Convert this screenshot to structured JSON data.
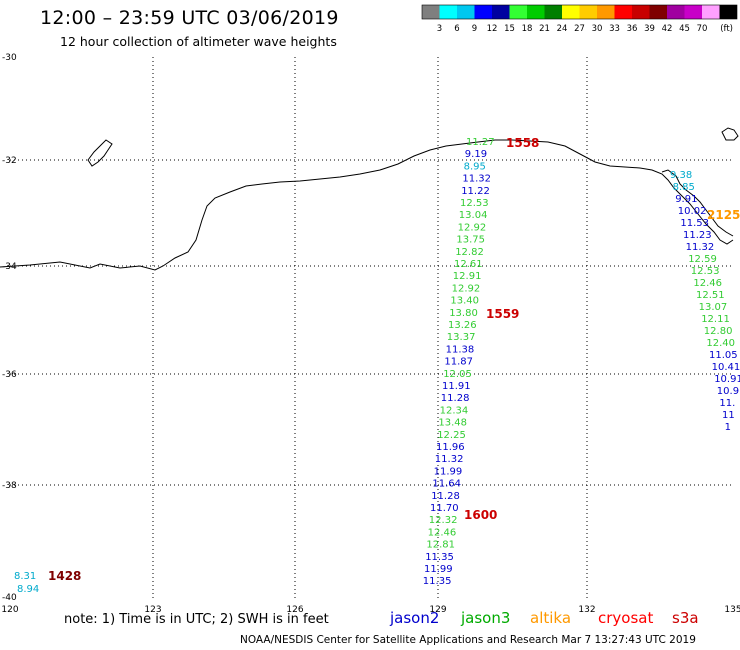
{
  "header": {
    "title": "12:00 – 23:59 UTC 03/06/2019",
    "subtitle": "12 hour collection of altimeter wave heights"
  },
  "colorbar": {
    "unit": "(ft)",
    "colors": [
      "#7f7f7f",
      "#00ffff",
      "#00c8f0",
      "#0000ff",
      "#0000a0",
      "#33ff33",
      "#00cc00",
      "#007f00",
      "#ffff00",
      "#ffcc00",
      "#ff9900",
      "#ff0000",
      "#c80000",
      "#7f0000",
      "#a000a0",
      "#c800c8",
      "#ffa0ff",
      "#000000"
    ],
    "labels": [
      "3",
      "6",
      "9",
      "12",
      "15",
      "18",
      "21",
      "24",
      "27",
      "30",
      "33",
      "36",
      "39",
      "42",
      "45",
      "70"
    ]
  },
  "axes": {
    "lon_ticks": [
      "120",
      "123",
      "126",
      "129",
      "132",
      "135"
    ],
    "lat_ticks": [
      "-30",
      "-32",
      "-34",
      "-36",
      "-38",
      "-40"
    ]
  },
  "time_labels": [
    {
      "text": "1558",
      "color": "#cc0000"
    },
    {
      "text": "1559",
      "color": "#cc0000"
    },
    {
      "text": "1600",
      "color": "#cc0000"
    },
    {
      "text": "2125",
      "color": "#ff9900"
    },
    {
      "text": "1428",
      "color": "#7f0000"
    }
  ],
  "tracks": {
    "jason3_pass": [
      {
        "v": "11.27",
        "c": "#33cc33"
      },
      {
        "v": "9.19",
        "c": "#0000cc"
      },
      {
        "v": "8.95",
        "c": "#00aacc"
      },
      {
        "v": "11.32",
        "c": "#0000cc"
      },
      {
        "v": "11.22",
        "c": "#0000cc"
      },
      {
        "v": "12.53",
        "c": "#33cc33"
      },
      {
        "v": "13.04",
        "c": "#33cc33"
      },
      {
        "v": "12.92",
        "c": "#33cc33"
      },
      {
        "v": "13.75",
        "c": "#33cc33"
      },
      {
        "v": "12.82",
        "c": "#33cc33"
      },
      {
        "v": "12.61",
        "c": "#33cc33"
      },
      {
        "v": "12.91",
        "c": "#33cc33"
      },
      {
        "v": "12.92",
        "c": "#33cc33"
      },
      {
        "v": "13.40",
        "c": "#33cc33"
      },
      {
        "v": "13.80",
        "c": "#33cc33"
      },
      {
        "v": "13.26",
        "c": "#33cc33"
      },
      {
        "v": "13.37",
        "c": "#33cc33"
      },
      {
        "v": "11.38",
        "c": "#0000cc"
      },
      {
        "v": "11.87",
        "c": "#0000cc"
      },
      {
        "v": "12.05",
        "c": "#33cc33"
      },
      {
        "v": "11.91",
        "c": "#0000cc"
      },
      {
        "v": "11.28",
        "c": "#0000cc"
      },
      {
        "v": "12.34",
        "c": "#33cc33"
      },
      {
        "v": "13.48",
        "c": "#33cc33"
      },
      {
        "v": "12.25",
        "c": "#33cc33"
      },
      {
        "v": "11.96",
        "c": "#0000cc"
      },
      {
        "v": "11.32",
        "c": "#0000cc"
      },
      {
        "v": "11.99",
        "c": "#0000cc"
      },
      {
        "v": "11.64",
        "c": "#0000cc"
      },
      {
        "v": "11.28",
        "c": "#0000cc"
      },
      {
        "v": "11.70",
        "c": "#0000cc"
      },
      {
        "v": "12.32",
        "c": "#33cc33"
      },
      {
        "v": "12.46",
        "c": "#33cc33"
      },
      {
        "v": "12.81",
        "c": "#33cc33"
      },
      {
        "v": "11.35",
        "c": "#0000cc"
      },
      {
        "v": "11.99",
        "c": "#0000cc"
      },
      {
        "v": "11.35",
        "c": "#0000cc"
      }
    ],
    "altika_pass": [
      {
        "v": "9.38",
        "c": "#00aacc"
      },
      {
        "v": "8.85",
        "c": "#00aacc"
      },
      {
        "v": "9.91",
        "c": "#0000cc"
      },
      {
        "v": "10.02",
        "c": "#0000cc"
      },
      {
        "v": "11.53",
        "c": "#0000cc"
      },
      {
        "v": "11.23",
        "c": "#0000cc"
      },
      {
        "v": "11.32",
        "c": "#0000cc"
      },
      {
        "v": "12.59",
        "c": "#33cc33"
      },
      {
        "v": "12.53",
        "c": "#33cc33"
      },
      {
        "v": "12.46",
        "c": "#33cc33"
      },
      {
        "v": "12.51",
        "c": "#33cc33"
      },
      {
        "v": "13.07",
        "c": "#33cc33"
      },
      {
        "v": "12.11",
        "c": "#33cc33"
      },
      {
        "v": "12.80",
        "c": "#33cc33"
      },
      {
        "v": "12.40",
        "c": "#33cc33"
      },
      {
        "v": "11.05",
        "c": "#0000cc"
      },
      {
        "v": "10.41",
        "c": "#0000cc"
      },
      {
        "v": "10.91",
        "c": "#0000cc"
      },
      {
        "v": "10.9",
        "c": "#0000cc"
      },
      {
        "v": "11.",
        "c": "#0000cc"
      },
      {
        "v": "11",
        "c": "#0000cc"
      },
      {
        "v": "1",
        "c": "#0000cc"
      }
    ],
    "corner_pass": [
      {
        "v": "8.31",
        "c": "#00aacc"
      },
      {
        "v": "8.94",
        "c": "#00aacc"
      }
    ]
  },
  "legend_note": "note: 1) Time is in UTC; 2) SWH is in feet",
  "satellites": [
    {
      "name": "jason2",
      "color": "#0000cc"
    },
    {
      "name": "jason3",
      "color": "#00aa00"
    },
    {
      "name": "altika",
      "color": "#ff9900"
    },
    {
      "name": "cryosat",
      "color": "#ff0000"
    },
    {
      "name": "s3a",
      "color": "#cc0000"
    }
  ],
  "footer": "NOAA/NESDIS Center for Satellite Applications and Research   Mar  7 13:27:43 UTC 2019"
}
